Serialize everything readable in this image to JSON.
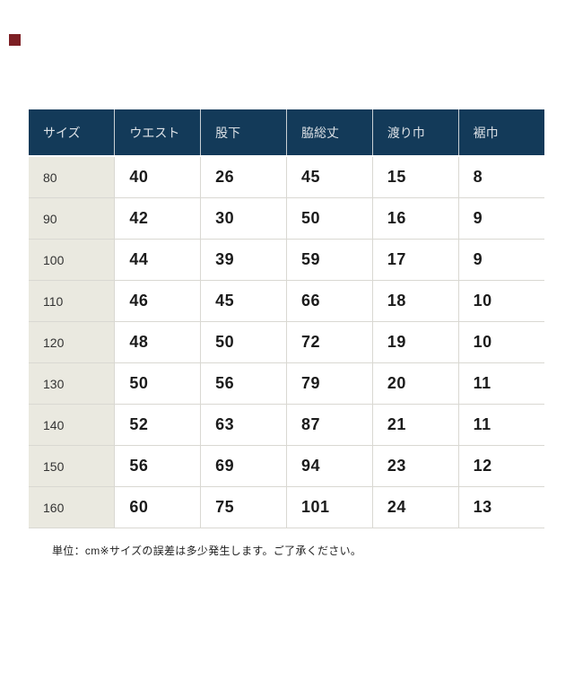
{
  "page": {
    "background": "#ffffff"
  },
  "top_left_marker": {
    "color": "#7d1f24"
  },
  "size_chart": {
    "colors": {
      "header_bg": "#133a59",
      "header_text": "#dce1e6",
      "label_column_bg": "#eae9e0",
      "border": "#d9d8d2"
    },
    "columns": [
      "サイズ",
      "ウエスト",
      "股下",
      "脇総丈",
      "渡り巾",
      "裾巾"
    ],
    "rows": [
      {
        "size": "80",
        "values": [
          "40",
          "26",
          "45",
          "15",
          "8"
        ]
      },
      {
        "size": "90",
        "values": [
          "42",
          "30",
          "50",
          "16",
          "9"
        ]
      },
      {
        "size": "100",
        "values": [
          "44",
          "39",
          "59",
          "17",
          "9"
        ]
      },
      {
        "size": "110",
        "values": [
          "46",
          "45",
          "66",
          "18",
          "10"
        ]
      },
      {
        "size": "120",
        "values": [
          "48",
          "50",
          "72",
          "19",
          "10"
        ]
      },
      {
        "size": "130",
        "values": [
          "50",
          "56",
          "79",
          "20",
          "11"
        ]
      },
      {
        "size": "140",
        "values": [
          "52",
          "63",
          "87",
          "21",
          "11"
        ]
      },
      {
        "size": "150",
        "values": [
          "56",
          "69",
          "94",
          "23",
          "12"
        ]
      },
      {
        "size": "160",
        "values": [
          "60",
          "75",
          "101",
          "24",
          "13"
        ]
      }
    ]
  },
  "note": {
    "text": "単位：cm※サイズの誤差は多少発生します。ご了承ください。"
  }
}
